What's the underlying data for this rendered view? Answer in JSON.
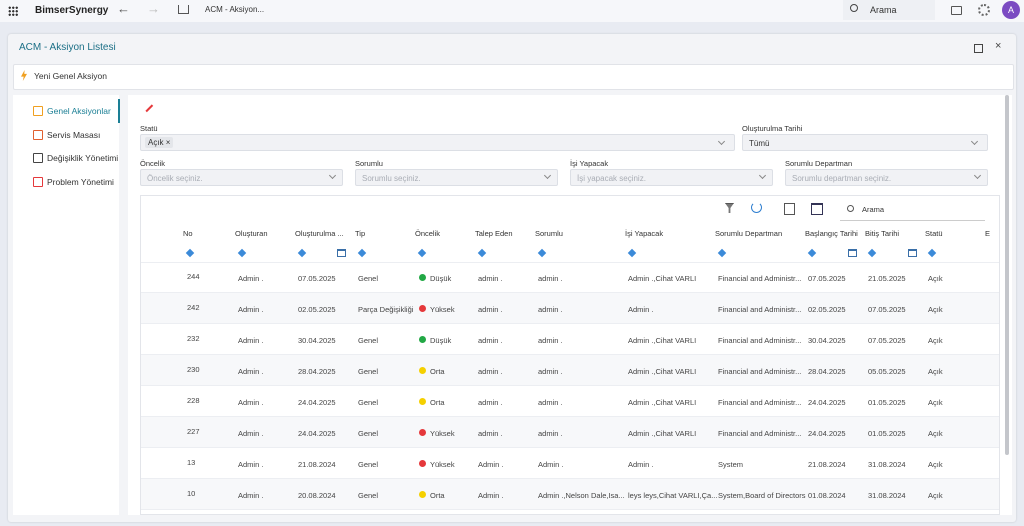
{
  "topbar": {
    "app_name": "BimserSynergy",
    "breadcrumb": "ACM - Aksiyon...",
    "search": "Arama",
    "avatar": "A"
  },
  "window": {
    "title": "ACM - Aksiyon Listesi",
    "new_action": "Yeni Genel Aksiyon"
  },
  "sidebar": {
    "items": [
      "Genel Aksiyonlar",
      "Servis Masası",
      "Değişiklik Yönetimi",
      "Problem Yönetimi"
    ]
  },
  "filters": {
    "status": {
      "label": "Statü",
      "chip": "Açık"
    },
    "created_date": {
      "label": "Oluşturulma Tarihi",
      "value": "Tümü"
    },
    "priority": {
      "label": "Öncelik",
      "placeholder": "Öncelik seçiniz."
    },
    "responsible": {
      "label": "Sorumlu",
      "placeholder": "Sorumlu seçiniz."
    },
    "doer": {
      "label": "İşi Yapacak",
      "placeholder": "İşi yapacak seçiniz."
    },
    "department": {
      "label": "Sorumlu Departman",
      "placeholder": "Sorumlu departman seçiniz."
    }
  },
  "table": {
    "search": "Arama",
    "columns": [
      "No",
      "Oluşturan",
      "Oluşturulma ...",
      "Tip",
      "Öncelik",
      "Talep Eden",
      "Sorumlu",
      "İşi Yapacak",
      "Sorumlu Departman",
      "Başlangıç Tarihi",
      "Bitiş Tarihi",
      "Statü",
      "E"
    ],
    "rows": [
      {
        "cells": [
          "244",
          "Admin .",
          "07.05.2025",
          "Genel",
          "Düşük",
          "admin .",
          "admin .",
          "Admin .,Cihat VARLI",
          "Financial and Administr...",
          "07.05.2025",
          "21.05.2025",
          "Açık"
        ],
        "dot": "#22a845"
      },
      {
        "cells": [
          "242",
          "Admin .",
          "02.05.2025",
          "Parça Değişikliği",
          "Yüksek",
          "admin .",
          "admin .",
          "Admin .",
          "Financial and Administr...",
          "02.05.2025",
          "07.05.2025",
          "Açık"
        ],
        "dot": "#e5383b"
      },
      {
        "cells": [
          "232",
          "Admin .",
          "30.04.2025",
          "Genel",
          "Düşük",
          "admin .",
          "admin .",
          "Admin .,Cihat VARLI",
          "Financial and Administr...",
          "30.04.2025",
          "07.05.2025",
          "Açık"
        ],
        "dot": "#22a845"
      },
      {
        "cells": [
          "230",
          "Admin .",
          "28.04.2025",
          "Genel",
          "Orta",
          "admin .",
          "admin .",
          "Admin .,Cihat VARLI",
          "Financial and Administr...",
          "28.04.2025",
          "05.05.2025",
          "Açık"
        ],
        "dot": "#f5d000"
      },
      {
        "cells": [
          "228",
          "Admin .",
          "24.04.2025",
          "Genel",
          "Orta",
          "admin .",
          "admin .",
          "Admin .,Cihat VARLI",
          "Financial and Administr...",
          "24.04.2025",
          "01.05.2025",
          "Açık"
        ],
        "dot": "#f5d000"
      },
      {
        "cells": [
          "227",
          "Admin .",
          "24.04.2025",
          "Genel",
          "Yüksek",
          "admin .",
          "admin .",
          "Admin .,Cihat VARLI",
          "Financial and Administr...",
          "24.04.2025",
          "01.05.2025",
          "Açık"
        ],
        "dot": "#e5383b"
      },
      {
        "cells": [
          "13",
          "Admin .",
          "21.08.2024",
          "Genel",
          "Yüksek",
          "Admin .",
          "Admin .",
          "Admin .",
          "System",
          "21.08.2024",
          "31.08.2024",
          "Açık"
        ],
        "dot": "#e5383b"
      },
      {
        "cells": [
          "10",
          "Admin .",
          "20.08.2024",
          "Genel",
          "Orta",
          "Admin .",
          "Admin .,Nelson Dale,Isa...",
          "leys leys,Cihat VARLI,Ça...",
          "System,Board of Directors",
          "01.08.2024",
          "31.08.2024",
          "Açık"
        ],
        "dot": "#f5d000"
      }
    ]
  }
}
